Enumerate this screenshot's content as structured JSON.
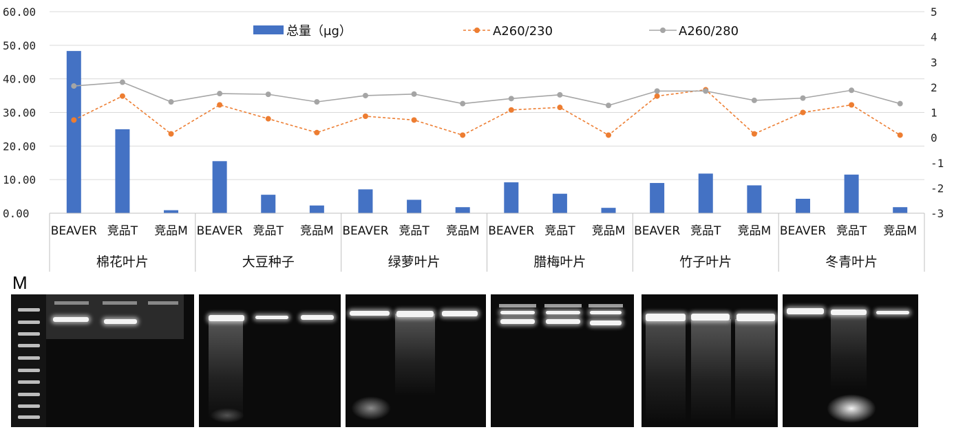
{
  "chart_data": {
    "type": "bar",
    "legend": {
      "placement": "top",
      "entries": [
        "总量（μg）",
        "A260/230",
        "A260/280"
      ]
    },
    "categories": [
      "BEAVER",
      "竞品T",
      "竞品M",
      "BEAVER",
      "竞品T",
      "竞品M",
      "BEAVER",
      "竞品T",
      "竞品M",
      "BEAVER",
      "竞品T",
      "竞品M",
      "BEAVER",
      "竞品T",
      "竞品M",
      "BEAVER",
      "竞品T",
      "竞品M"
    ],
    "groups": [
      "棉花叶片",
      "大豆种子",
      "绿萝叶片",
      "腊梅叶片",
      "竹子叶片",
      "冬青叶片"
    ],
    "y_left": {
      "ticks": [
        "0.00",
        "10.00",
        "20.00",
        "30.00",
        "40.00",
        "50.00",
        "60.00"
      ],
      "ylim": [
        0,
        60
      ]
    },
    "y_right": {
      "ticks": [
        "-3",
        "-2",
        "-1",
        "0",
        "1",
        "2",
        "3",
        "4",
        "5"
      ],
      "ylim": [
        -3,
        5
      ]
    },
    "grid": true,
    "series": [
      {
        "name": "总量（μg）",
        "type": "bar",
        "axis": "left",
        "color": "#4472C4",
        "values": [
          48.3,
          25.0,
          0.9,
          15.5,
          5.5,
          2.3,
          7.1,
          4.0,
          1.8,
          9.2,
          5.8,
          1.6,
          9.0,
          11.8,
          8.3,
          4.3,
          11.5,
          1.8
        ]
      },
      {
        "name": "A260/230",
        "type": "line",
        "axis": "right",
        "color": "#ED7D31",
        "dashed": true,
        "values": [
          0.7,
          1.65,
          0.15,
          1.3,
          0.75,
          0.2,
          0.85,
          0.7,
          0.1,
          1.1,
          1.2,
          0.1,
          1.65,
          1.9,
          0.15,
          1.0,
          1.3,
          0.1
        ]
      },
      {
        "name": "A260/280",
        "type": "line",
        "axis": "right",
        "color": "#A5A5A5",
        "dashed": false,
        "values": [
          2.05,
          2.2,
          1.42,
          1.75,
          1.72,
          1.42,
          1.67,
          1.73,
          1.35,
          1.55,
          1.7,
          1.28,
          1.85,
          1.85,
          1.48,
          1.57,
          1.88,
          1.35
        ]
      }
    ]
  },
  "gel": {
    "marker_label": "M"
  }
}
